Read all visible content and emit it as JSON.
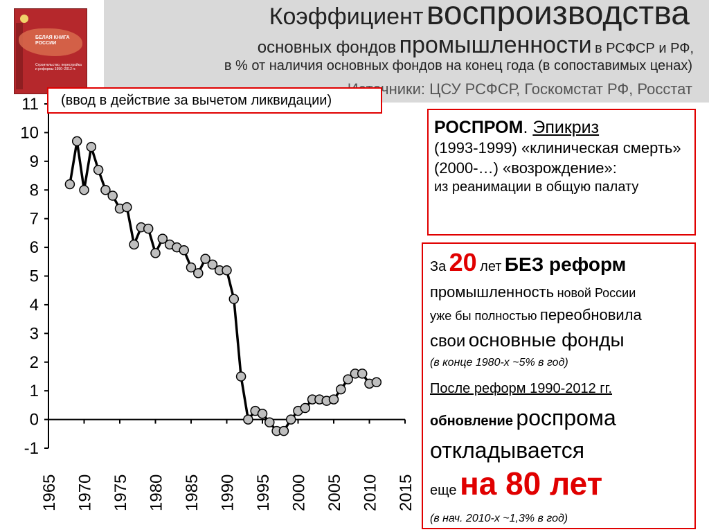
{
  "header": {
    "title_part1": "Коэффициент",
    "title_part2": "воспроизводства",
    "subtitle_part1": "основных фондов",
    "subtitle_part2": "промышленности",
    "subtitle_part3": "в РСФСР и РФ,",
    "line3": "в % от наличия основных фондов на конец года (в сопоставимых ценах)",
    "line4": "Источники: ЦСУ РСФСР, Госкомстат РФ, Росстат",
    "book_title": "БЕЛАЯ КНИГА РОССИИ",
    "book_subtitle": "Строительство, перестройка и реформы 1950–2012 гг."
  },
  "note": "(ввод в действие за вычетом ликвидации)",
  "box1": {
    "brand": "РОСПРОМ",
    "dot": ".",
    "epicrisis": "Эпикриз",
    "line2": "(1993-1999) «клиническая смерть»",
    "line3": "(2000-…) «возрождение»:",
    "line4": "из реанимации в общую палату"
  },
  "box2": {
    "za": "За",
    "num20": "20",
    "let": "лет",
    "bez": "БЕЗ реформ",
    "prom": "промышленность",
    "novoy": "новой России",
    "uzhe": "уже бы полностью",
    "pereob": "переобновила",
    "svoi": "свои",
    "osn": "основные фонды",
    "note1": "(в конце 1980-х ~5% в год)",
    "posle": "После реформ  1990-2012 гг.",
    "obnov": "обновление",
    "rosproma": "роспрома",
    "otkl": "откладывается",
    "esche": "еще",
    "na80": "на 80 лет",
    "note2": "(в нач. 2010-х ~1,3% в год)"
  },
  "chart_data": {
    "type": "line",
    "title": "",
    "xlabel": "",
    "ylabel": "",
    "xlim": [
      1965,
      2015
    ],
    "ylim": [
      -1,
      11
    ],
    "xticks": [
      1965,
      1970,
      1975,
      1980,
      1985,
      1990,
      1995,
      2000,
      2005,
      2010,
      2015
    ],
    "yticks": [
      -1,
      0,
      1,
      2,
      3,
      4,
      5,
      6,
      7,
      8,
      9,
      10,
      11
    ],
    "grid": false,
    "legend": "none",
    "colors": {
      "line": "#000000",
      "marker_fill": "#bfbfbf",
      "marker_stroke": "#000000"
    },
    "series": [
      {
        "x": [
          1968,
          1969,
          1970,
          1971,
          1972,
          1973,
          1974,
          1975,
          1976,
          1977,
          1978,
          1979,
          1980,
          1981,
          1982,
          1983,
          1984,
          1985,
          1986,
          1987,
          1988,
          1989,
          1990,
          1991,
          1992,
          1993,
          1994,
          1995,
          1996,
          1997,
          1998,
          1999,
          2000,
          2001,
          2002,
          2003,
          2004,
          2005,
          2006,
          2007,
          2008,
          2009,
          2010,
          2011
        ],
        "y": [
          8.2,
          9.7,
          8.0,
          9.5,
          8.7,
          8.0,
          7.8,
          7.35,
          7.4,
          6.1,
          6.7,
          6.65,
          5.8,
          6.3,
          6.1,
          6.0,
          5.9,
          5.3,
          5.1,
          5.6,
          5.4,
          5.2,
          5.2,
          4.2,
          1.5,
          0.0,
          0.3,
          0.2,
          -0.1,
          -0.4,
          -0.4,
          0.0,
          0.3,
          0.4,
          0.7,
          0.7,
          0.65,
          0.7,
          1.05,
          1.4,
          1.6,
          1.6,
          1.25,
          1.3
        ]
      }
    ]
  }
}
